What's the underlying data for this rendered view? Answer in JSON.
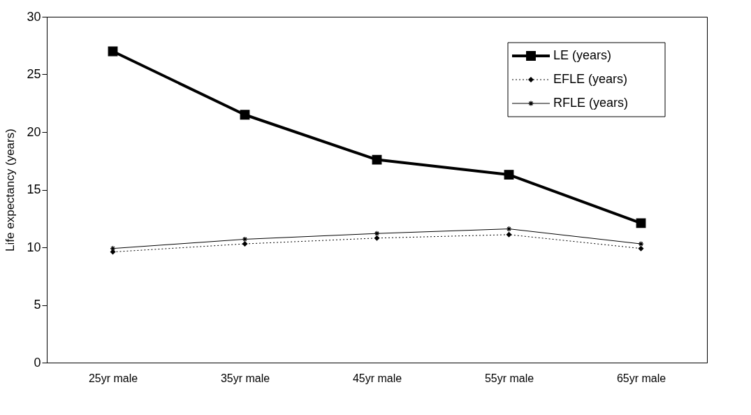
{
  "chart_data": {
    "type": "line",
    "ylabel": "Life expectancy (years)",
    "categories": [
      "25yr male",
      "35yr male",
      "45yr male",
      "55yr male",
      "65yr male"
    ],
    "ylim": [
      0,
      30
    ],
    "yticks": [
      0,
      5,
      10,
      15,
      20,
      25,
      30
    ],
    "grid": false,
    "legend": "top right",
    "series": [
      {
        "name": "LE (years)",
        "color": "#000000",
        "marker": "square",
        "line_style": "solid",
        "values": [
          27.0,
          21.5,
          17.6,
          16.3,
          12.1
        ]
      },
      {
        "name": "EFLE (years)",
        "color": "#000000",
        "marker": "diamond",
        "line_style": "dotted",
        "values": [
          9.6,
          10.3,
          10.8,
          11.1,
          9.9
        ]
      },
      {
        "name": "RFLE (years)",
        "color": "#000000",
        "marker": "cross",
        "line_style": "solid",
        "values": [
          9.9,
          10.7,
          11.2,
          11.6,
          10.3
        ]
      }
    ]
  }
}
